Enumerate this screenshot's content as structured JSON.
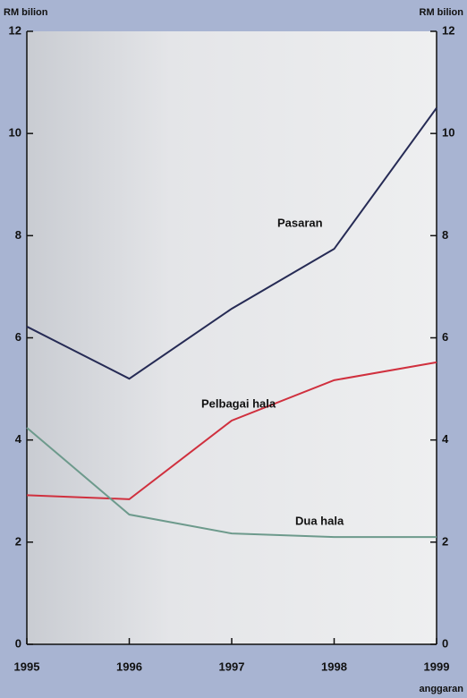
{
  "chart_data": {
    "type": "line",
    "y_label": "RM bilion",
    "x_note": "anggaran",
    "categories": [
      "1995",
      "1996",
      "1997",
      "1998",
      "1999"
    ],
    "series": [
      {
        "name": "Pasaran",
        "color": "#262b55",
        "values": [
          6.22,
          5.2,
          6.57,
          7.74,
          10.5
        ]
      },
      {
        "name": "Pelbagai hala",
        "color": "#d0303e",
        "values": [
          2.92,
          2.84,
          4.38,
          5.17,
          5.52
        ]
      },
      {
        "name": "Dua hala",
        "color": "#6d9a8c",
        "values": [
          4.24,
          2.54,
          2.17,
          2.1,
          2.1
        ]
      }
    ],
    "ylim": [
      0,
      12
    ],
    "yticks": [
      0,
      2,
      4,
      6,
      8,
      10,
      12
    ]
  }
}
